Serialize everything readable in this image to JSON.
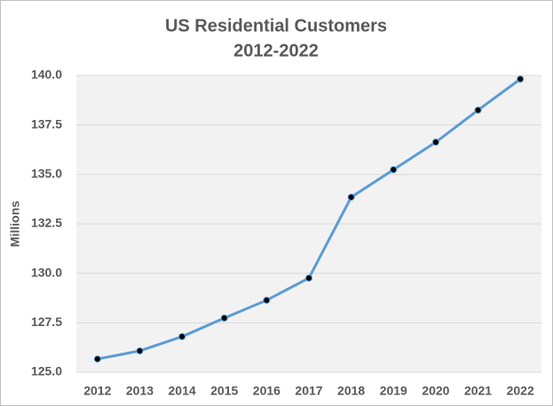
{
  "chart_data": {
    "type": "line",
    "title": "US Residential  Customers",
    "subtitle": "2012-2022",
    "y_label": "Millions",
    "categories": [
      "2012",
      "2013",
      "2014",
      "2015",
      "2016",
      "2017",
      "2018",
      "2019",
      "2020",
      "2021",
      "2022"
    ],
    "series": [
      {
        "name": "US Residential Customers",
        "color": "#5b9bd5",
        "values": [
          125.67,
          126.08,
          126.8,
          127.74,
          128.64,
          129.76,
          133.85,
          135.24,
          136.63,
          138.25,
          139.82
        ]
      }
    ],
    "ylim": [
      125,
      140
    ],
    "yticks": [
      {
        "value": 125,
        "label": "125.0"
      },
      {
        "value": 127.5,
        "label": "127.5"
      },
      {
        "value": 130,
        "label": "130.0"
      },
      {
        "value": 132.5,
        "label": "132.5"
      },
      {
        "value": 135,
        "label": "135.0"
      },
      {
        "value": 137.5,
        "label": "137.5"
      },
      {
        "value": 140,
        "label": "140.0"
      }
    ],
    "grid": true,
    "marker_color": "#000000"
  }
}
